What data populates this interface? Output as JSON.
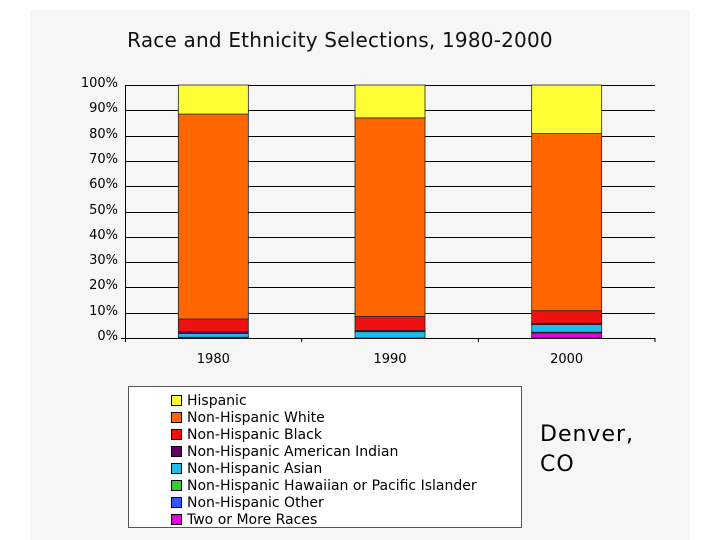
{
  "chart_data": {
    "type": "bar",
    "stacked": true,
    "title": "Race and Ethnicity Selections, 1980-2000",
    "categories": [
      "1980",
      "1990",
      "2000"
    ],
    "ylim": [
      0,
      100
    ],
    "yticks": [
      "0%",
      "10%",
      "20%",
      "30%",
      "40%",
      "50%",
      "60%",
      "70%",
      "80%",
      "90%",
      "100%"
    ],
    "series": [
      {
        "name": "Two or More Races",
        "color": "#e000e0",
        "values": [
          0,
          0,
          2
        ]
      },
      {
        "name": "Non-Hispanic Other",
        "color": "#3355ff",
        "values": [
          0.3,
          0,
          0.2
        ]
      },
      {
        "name": "Non-Hispanic Hawaiian or Pacific Islander",
        "color": "#33cc33",
        "values": [
          0,
          0,
          0.1
        ]
      },
      {
        "name": "Non-Hispanic Asian",
        "color": "#22bbee",
        "values": [
          1.5,
          2.5,
          3
        ]
      },
      {
        "name": "Non-Hispanic American Indian",
        "color": "#660066",
        "values": [
          0.7,
          0.5,
          0.5
        ]
      },
      {
        "name": "Non-Hispanic Black",
        "color": "#ee1111",
        "values": [
          5,
          5.5,
          5
        ]
      },
      {
        "name": "Non-Hispanic White",
        "color": "#ff6600",
        "values": [
          81,
          78.5,
          70
        ]
      },
      {
        "name": "Hispanic",
        "color": "#ffff33",
        "values": [
          11.5,
          13,
          19.2
        ]
      }
    ],
    "legend": [
      {
        "label": "Hispanic",
        "color": "#ffff33"
      },
      {
        "label": "Non-Hispanic White",
        "color": "#ff6600"
      },
      {
        "label": "Non-Hispanic Black",
        "color": "#ee1111"
      },
      {
        "label": "Non-Hispanic American Indian",
        "color": "#660066"
      },
      {
        "label": "Non-Hispanic Asian",
        "color": "#22bbee"
      },
      {
        "label": "Non-Hispanic Hawaiian or Pacific Islander",
        "color": "#33cc33"
      },
      {
        "label": "Non-Hispanic Other",
        "color": "#3355ff"
      },
      {
        "label": "Two or More Races",
        "color": "#e000e0"
      }
    ],
    "gridlines": true,
    "legend_position": "bottom-left"
  },
  "caption": {
    "line1": "Denver,",
    "line2": "CO"
  }
}
